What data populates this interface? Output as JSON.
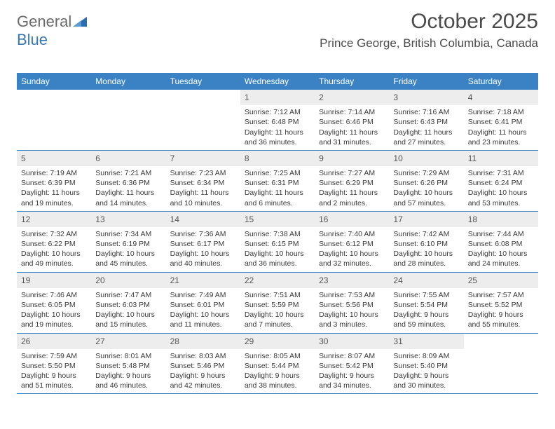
{
  "logo": {
    "text_gray": "General",
    "text_blue": "Blue"
  },
  "title": "October 2025",
  "subtitle": "Prince George, British Columbia, Canada",
  "colors": {
    "header_bar": "#3a82c4",
    "row_border": "#3a82c4",
    "daynum_bg": "#ededed",
    "text": "#3a3a3a",
    "logo_gray": "#6a6a6a",
    "logo_blue": "#3a78b5"
  },
  "day_headers": [
    "Sunday",
    "Monday",
    "Tuesday",
    "Wednesday",
    "Thursday",
    "Friday",
    "Saturday"
  ],
  "weeks": [
    [
      {
        "empty": true
      },
      {
        "empty": true
      },
      {
        "empty": true
      },
      {
        "n": "1",
        "sr": "Sunrise: 7:12 AM",
        "ss": "Sunset: 6:48 PM",
        "dl": "Daylight: 11 hours and 36 minutes."
      },
      {
        "n": "2",
        "sr": "Sunrise: 7:14 AM",
        "ss": "Sunset: 6:46 PM",
        "dl": "Daylight: 11 hours and 31 minutes."
      },
      {
        "n": "3",
        "sr": "Sunrise: 7:16 AM",
        "ss": "Sunset: 6:43 PM",
        "dl": "Daylight: 11 hours and 27 minutes."
      },
      {
        "n": "4",
        "sr": "Sunrise: 7:18 AM",
        "ss": "Sunset: 6:41 PM",
        "dl": "Daylight: 11 hours and 23 minutes."
      }
    ],
    [
      {
        "n": "5",
        "sr": "Sunrise: 7:19 AM",
        "ss": "Sunset: 6:39 PM",
        "dl": "Daylight: 11 hours and 19 minutes."
      },
      {
        "n": "6",
        "sr": "Sunrise: 7:21 AM",
        "ss": "Sunset: 6:36 PM",
        "dl": "Daylight: 11 hours and 14 minutes."
      },
      {
        "n": "7",
        "sr": "Sunrise: 7:23 AM",
        "ss": "Sunset: 6:34 PM",
        "dl": "Daylight: 11 hours and 10 minutes."
      },
      {
        "n": "8",
        "sr": "Sunrise: 7:25 AM",
        "ss": "Sunset: 6:31 PM",
        "dl": "Daylight: 11 hours and 6 minutes."
      },
      {
        "n": "9",
        "sr": "Sunrise: 7:27 AM",
        "ss": "Sunset: 6:29 PM",
        "dl": "Daylight: 11 hours and 2 minutes."
      },
      {
        "n": "10",
        "sr": "Sunrise: 7:29 AM",
        "ss": "Sunset: 6:26 PM",
        "dl": "Daylight: 10 hours and 57 minutes."
      },
      {
        "n": "11",
        "sr": "Sunrise: 7:31 AM",
        "ss": "Sunset: 6:24 PM",
        "dl": "Daylight: 10 hours and 53 minutes."
      }
    ],
    [
      {
        "n": "12",
        "sr": "Sunrise: 7:32 AM",
        "ss": "Sunset: 6:22 PM",
        "dl": "Daylight: 10 hours and 49 minutes."
      },
      {
        "n": "13",
        "sr": "Sunrise: 7:34 AM",
        "ss": "Sunset: 6:19 PM",
        "dl": "Daylight: 10 hours and 45 minutes."
      },
      {
        "n": "14",
        "sr": "Sunrise: 7:36 AM",
        "ss": "Sunset: 6:17 PM",
        "dl": "Daylight: 10 hours and 40 minutes."
      },
      {
        "n": "15",
        "sr": "Sunrise: 7:38 AM",
        "ss": "Sunset: 6:15 PM",
        "dl": "Daylight: 10 hours and 36 minutes."
      },
      {
        "n": "16",
        "sr": "Sunrise: 7:40 AM",
        "ss": "Sunset: 6:12 PM",
        "dl": "Daylight: 10 hours and 32 minutes."
      },
      {
        "n": "17",
        "sr": "Sunrise: 7:42 AM",
        "ss": "Sunset: 6:10 PM",
        "dl": "Daylight: 10 hours and 28 minutes."
      },
      {
        "n": "18",
        "sr": "Sunrise: 7:44 AM",
        "ss": "Sunset: 6:08 PM",
        "dl": "Daylight: 10 hours and 24 minutes."
      }
    ],
    [
      {
        "n": "19",
        "sr": "Sunrise: 7:46 AM",
        "ss": "Sunset: 6:05 PM",
        "dl": "Daylight: 10 hours and 19 minutes."
      },
      {
        "n": "20",
        "sr": "Sunrise: 7:47 AM",
        "ss": "Sunset: 6:03 PM",
        "dl": "Daylight: 10 hours and 15 minutes."
      },
      {
        "n": "21",
        "sr": "Sunrise: 7:49 AM",
        "ss": "Sunset: 6:01 PM",
        "dl": "Daylight: 10 hours and 11 minutes."
      },
      {
        "n": "22",
        "sr": "Sunrise: 7:51 AM",
        "ss": "Sunset: 5:59 PM",
        "dl": "Daylight: 10 hours and 7 minutes."
      },
      {
        "n": "23",
        "sr": "Sunrise: 7:53 AM",
        "ss": "Sunset: 5:56 PM",
        "dl": "Daylight: 10 hours and 3 minutes."
      },
      {
        "n": "24",
        "sr": "Sunrise: 7:55 AM",
        "ss": "Sunset: 5:54 PM",
        "dl": "Daylight: 9 hours and 59 minutes."
      },
      {
        "n": "25",
        "sr": "Sunrise: 7:57 AM",
        "ss": "Sunset: 5:52 PM",
        "dl": "Daylight: 9 hours and 55 minutes."
      }
    ],
    [
      {
        "n": "26",
        "sr": "Sunrise: 7:59 AM",
        "ss": "Sunset: 5:50 PM",
        "dl": "Daylight: 9 hours and 51 minutes."
      },
      {
        "n": "27",
        "sr": "Sunrise: 8:01 AM",
        "ss": "Sunset: 5:48 PM",
        "dl": "Daylight: 9 hours and 46 minutes."
      },
      {
        "n": "28",
        "sr": "Sunrise: 8:03 AM",
        "ss": "Sunset: 5:46 PM",
        "dl": "Daylight: 9 hours and 42 minutes."
      },
      {
        "n": "29",
        "sr": "Sunrise: 8:05 AM",
        "ss": "Sunset: 5:44 PM",
        "dl": "Daylight: 9 hours and 38 minutes."
      },
      {
        "n": "30",
        "sr": "Sunrise: 8:07 AM",
        "ss": "Sunset: 5:42 PM",
        "dl": "Daylight: 9 hours and 34 minutes."
      },
      {
        "n": "31",
        "sr": "Sunrise: 8:09 AM",
        "ss": "Sunset: 5:40 PM",
        "dl": "Daylight: 9 hours and 30 minutes."
      },
      {
        "empty": true
      }
    ]
  ]
}
